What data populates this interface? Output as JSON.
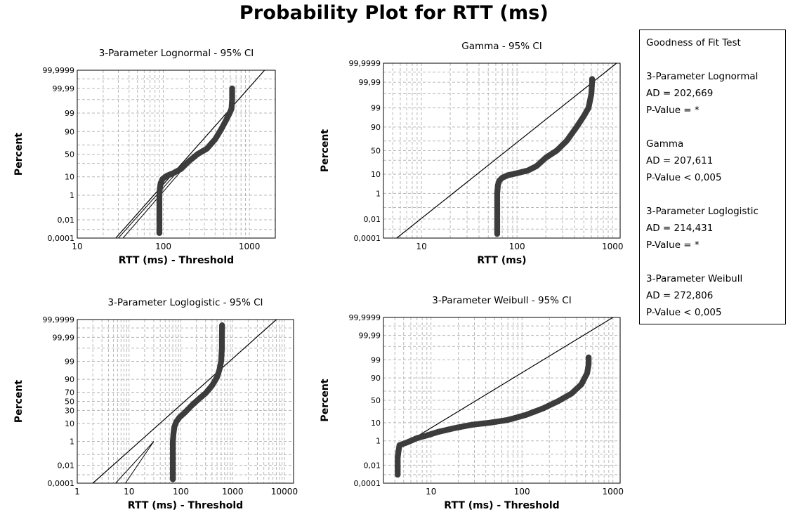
{
  "title": "Probability Plot for RTT (ms)",
  "gof": {
    "heading": "Goodness of Fit Test",
    "entries": [
      {
        "name": "3-Parameter Lognormal",
        "ad": "AD = 202,669",
        "p": "P-Value = *"
      },
      {
        "name": "Gamma",
        "ad": "AD = 207,611",
        "p": "P-Value < 0,005"
      },
      {
        "name": "3-Parameter Loglogistic",
        "ad": "AD = 214,431",
        "p": "P-Value = *"
      },
      {
        "name": "3-Parameter Weibull",
        "ad": "AD = 272,806",
        "p": "P-Value < 0,005"
      }
    ]
  },
  "chart_data": [
    {
      "type": "scatter",
      "title": "3-Parameter Lognormal - 95% CI",
      "xlabel": "RTT (ms) - Threshold",
      "ylabel": "Percent",
      "xscale": "log",
      "xlim": [
        10,
        2000
      ],
      "xticks": [
        10,
        100,
        1000
      ],
      "xtick_labels": [
        "10",
        "100",
        "1000"
      ],
      "ylim": [
        0.0001,
        99.9999
      ],
      "yticks": [
        0.0001,
        0.01,
        1,
        10,
        50,
        90,
        99,
        99.99,
        99.9999
      ],
      "ytick_labels": [
        "0,0001",
        "0,01",
        "1",
        "10",
        "50",
        "90",
        "99",
        "99,99",
        "99,9999"
      ],
      "ygrid": [
        0.0001,
        0.001,
        0.01,
        0.1,
        1,
        10,
        30,
        50,
        70,
        90,
        99,
        99.9,
        99.99,
        99.999,
        99.9999
      ],
      "fit_line": {
        "x": [
          28,
          1500
        ],
        "y": [
          0.0001,
          99.9999
        ]
      },
      "ci_bands": [
        {
          "x": [
            30,
            200
          ],
          "y": [
            0.0001,
            40
          ]
        },
        {
          "x": [
            34,
            210
          ],
          "y": [
            0.0001,
            38
          ]
        }
      ],
      "points": {
        "x": [
          90,
          90,
          90,
          90,
          90,
          91,
          93,
          98,
          110,
          130,
          160,
          200,
          250,
          320,
          400,
          470,
          530,
          590,
          620,
          630,
          630,
          630
        ],
        "y": [
          0.0004,
          0.001,
          0.01,
          0.1,
          1,
          2.5,
          5,
          8,
          11,
          14,
          20,
          35,
          50,
          62,
          80,
          92,
          97,
          99,
          99.5,
          99.9,
          99.95,
          99.99
        ]
      }
    },
    {
      "type": "scatter",
      "title": "Gamma - 95% CI",
      "xlabel": "RTT (ms)",
      "ylabel": "Percent",
      "xscale": "log",
      "xlim": [
        4,
        1200
      ],
      "xticks": [
        10,
        100,
        1000
      ],
      "xtick_labels": [
        "10",
        "100",
        "1000"
      ],
      "ylim": [
        0.0001,
        99.9999
      ],
      "yticks": [
        0.0001,
        0.01,
        1,
        10,
        50,
        90,
        99,
        99.99,
        99.9999
      ],
      "ytick_labels": [
        "0,0001",
        "0,01",
        "1",
        "10",
        "50",
        "90",
        "99",
        "99,99",
        "99,9999"
      ],
      "ygrid": [
        0.0001,
        0.001,
        0.01,
        0.1,
        1,
        10,
        30,
        50,
        70,
        90,
        99,
        99.9,
        99.99,
        99.999,
        99.9999
      ],
      "fit_line": {
        "x": [
          5.5,
          1100
        ],
        "y": [
          0.0001,
          99.9999
        ]
      },
      "ci_bands": [],
      "points": {
        "x": [
          62,
          62,
          62,
          62,
          62,
          63,
          65,
          70,
          80,
          100,
          130,
          160,
          200,
          260,
          330,
          420,
          500,
          560,
          600,
          610,
          610
        ],
        "y": [
          0.0003,
          0.003,
          0.03,
          0.2,
          1,
          3,
          5,
          7,
          9,
          11,
          14,
          20,
          35,
          50,
          70,
          90,
          97,
          99,
          99.9,
          99.99,
          99.995
        ]
      }
    },
    {
      "type": "scatter",
      "title": "3-Parameter Loglogistic - 95% CI",
      "xlabel": "RTT (ms) - Threshold",
      "ylabel": "Percent",
      "xscale": "log",
      "xlim": [
        1,
        15000
      ],
      "xticks": [
        1,
        10,
        100,
        1000,
        10000
      ],
      "xtick_labels": [
        "1",
        "10",
        "100",
        "1000",
        "10000"
      ],
      "ylim": [
        0.0001,
        99.9999
      ],
      "yticks": [
        0.0001,
        0.01,
        1,
        10,
        30,
        50,
        70,
        90,
        99,
        99.99,
        99.9999
      ],
      "ytick_labels": [
        "0,0001",
        "0,01",
        "1",
        "10",
        "30",
        "50",
        "70",
        "90",
        "99",
        "99,99",
        "99,9999"
      ],
      "ygrid": [
        0.0001,
        0.001,
        0.01,
        0.1,
        1,
        10,
        30,
        50,
        70,
        90,
        99,
        99.9,
        99.99,
        99.999,
        99.9999
      ],
      "fit_line": {
        "x": [
          2,
          7000
        ],
        "y": [
          0.0001,
          99.9999
        ]
      },
      "ci_bands": [
        {
          "x": [
            5.5,
            30
          ],
          "y": [
            0.0001,
            1
          ]
        },
        {
          "x": [
            8.5,
            30
          ],
          "y": [
            0.0001,
            1
          ]
        }
      ],
      "points": {
        "x": [
          70,
          70,
          70,
          70,
          70,
          72,
          75,
          82,
          95,
          120,
          160,
          220,
          300,
          400,
          500,
          560,
          600,
          620,
          620,
          625,
          625
        ],
        "y": [
          0.0003,
          0.001,
          0.01,
          0.1,
          1,
          3,
          7,
          12,
          18,
          26,
          40,
          55,
          68,
          82,
          92,
          97,
          99,
          99.9,
          99.99,
          99.999,
          99.9995
        ]
      }
    },
    {
      "type": "scatter",
      "title": "3-Parameter Weibull - 95% CI",
      "xlabel": "RTT (ms) - Threshold",
      "ylabel": "Percent",
      "xscale": "log",
      "xlim": [
        3,
        1200
      ],
      "xticks": [
        10,
        100,
        1000
      ],
      "xtick_labels": [
        "10",
        "100",
        "1000"
      ],
      "ylim": [
        0.0001,
        99.9999
      ],
      "yticks": [
        0.0001,
        0.01,
        1,
        10,
        50,
        90,
        99,
        99.99,
        99.9999
      ],
      "ytick_labels": [
        "0,0001",
        "0,01",
        "1",
        "10",
        "50",
        "90",
        "99",
        "99,99",
        "99,9999"
      ],
      "ygrid": [
        0.0001,
        0.001,
        0.01,
        0.1,
        1,
        10,
        30,
        50,
        70,
        90,
        99,
        99.9,
        99.99,
        99.999,
        99.9999
      ],
      "fit_line": {
        "x": [
          5.5,
          1000
        ],
        "y": [
          0.8,
          99.9999
        ]
      },
      "ci_bands": [],
      "points": {
        "x": [
          4.3,
          4.3,
          4.3,
          4.3,
          4.4,
          4.5,
          5.5,
          6,
          7,
          9,
          12,
          18,
          28,
          45,
          70,
          110,
          170,
          250,
          350,
          450,
          520,
          540,
          540
        ],
        "y": [
          0.001,
          0.003,
          0.01,
          0.05,
          0.2,
          0.5,
          0.8,
          1,
          1.5,
          2.2,
          3.5,
          5.5,
          8,
          10,
          13,
          20,
          32,
          48,
          65,
          82,
          94,
          98,
          99.3
        ]
      }
    }
  ]
}
